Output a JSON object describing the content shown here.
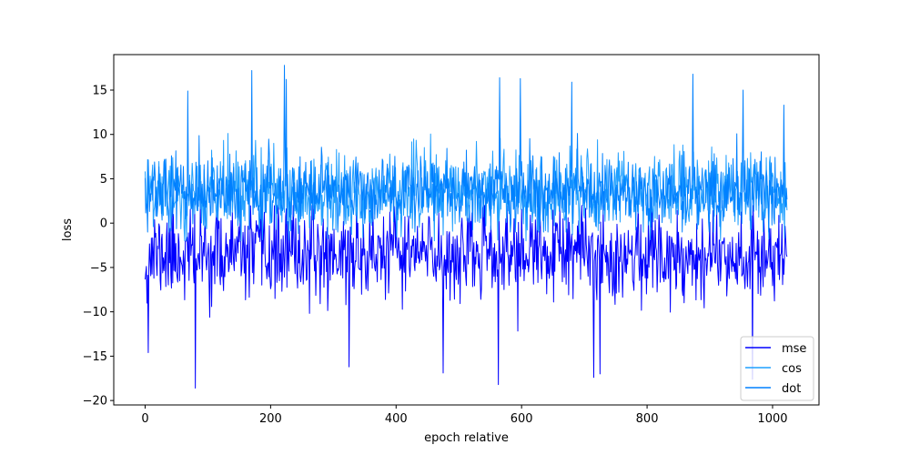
{
  "chart_data": {
    "type": "line",
    "xlabel": "epoch relative",
    "ylabel": "loss",
    "xlim": [
      -50,
      1074
    ],
    "ylim": [
      -20.5,
      19
    ],
    "xticks": [
      0,
      200,
      400,
      600,
      800,
      1000
    ],
    "yticks": [
      -20,
      -15,
      -10,
      -5,
      0,
      5,
      10,
      15
    ],
    "x_range": [
      0,
      1023
    ],
    "legend_position": "lower right",
    "series": [
      {
        "name": "mse",
        "color": "#0000ff",
        "summary": {
          "mean": -3.5,
          "typical_low": -9,
          "typical_high": 1,
          "min": -18.6,
          "max": 2
        },
        "extremes": [
          [
            5,
            -14.6
          ],
          [
            80,
            -18.6
          ],
          [
            325,
            -16.2
          ],
          [
            475,
            -16.9
          ],
          [
            563,
            -18.2
          ],
          [
            715,
            -17.4
          ],
          [
            725,
            -17.0
          ],
          [
            968,
            -17.6
          ]
        ]
      },
      {
        "name": "cos",
        "color": "#1f9fff",
        "summary": {
          "mean": 3.5,
          "typical_low": -1,
          "typical_high": 8,
          "min": -2,
          "max": 14
        }
      },
      {
        "name": "dot",
        "color": "#0080ff",
        "summary": {
          "mean": 3.5,
          "typical_low": 0,
          "typical_high": 8,
          "min": -1,
          "max": 17.8
        },
        "extremes": [
          [
            68,
            14.9
          ],
          [
            170,
            17.2
          ],
          [
            222,
            17.8
          ],
          [
            225,
            16.2
          ],
          [
            565,
            16.4
          ],
          [
            598,
            16.3
          ],
          [
            680,
            15.9
          ],
          [
            873,
            16.8
          ],
          [
            953,
            15.0
          ],
          [
            1018,
            13.3
          ]
        ]
      }
    ]
  }
}
